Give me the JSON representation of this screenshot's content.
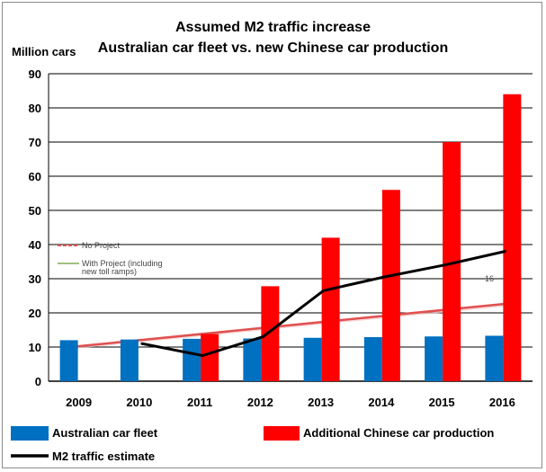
{
  "chart_data": {
    "type": "bar",
    "title": "Assumed  M2 traffic increase",
    "subtitle": "Australian car fleet vs. new Chinese car production",
    "ylabel": "Million cars",
    "ylim": [
      0,
      90
    ],
    "yticks": [
      0,
      10,
      20,
      30,
      40,
      50,
      60,
      70,
      80,
      90
    ],
    "categories": [
      "2009",
      "2010",
      "2011",
      "2012",
      "2013",
      "2014",
      "2015",
      "2016"
    ],
    "grid": true,
    "legend_position": "bottom",
    "series": [
      {
        "name": "Australian car fleet",
        "type": "bar",
        "color": "#0070c0",
        "values": [
          12,
          12.2,
          12.4,
          12.5,
          12.7,
          12.9,
          13.1,
          13.3
        ]
      },
      {
        "name": "Additional Chinese car production",
        "type": "bar",
        "color": "#ff0000",
        "values": [
          null,
          null,
          13.8,
          27.8,
          42,
          56,
          70,
          84
        ]
      },
      {
        "name": "M2 traffic estimate",
        "type": "line",
        "color": "#000000",
        "values": [
          null,
          11,
          7.5,
          13,
          26.5,
          30.5,
          34,
          38
        ]
      }
    ],
    "background_series": [
      {
        "name": "No Project",
        "color": "#e05050",
        "x_start": "2009",
        "x_end": "2016",
        "y_start": 9.8,
        "y_end": 23
      }
    ],
    "annotations": [
      "No Project",
      "With Project (including",
      "new toll ramps)",
      "16"
    ]
  }
}
